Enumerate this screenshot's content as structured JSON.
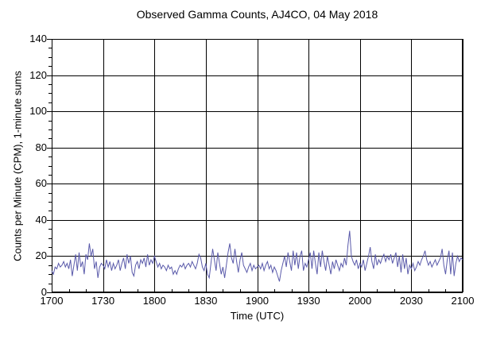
{
  "window": {
    "background": "#ffffff"
  },
  "chart_data": {
    "type": "line",
    "title": "Observed Gamma Counts, AJ4CO, 04 May 2018",
    "xlabel": "Time (UTC)",
    "ylabel": "Counts per Minute (CPM), 1-minute sums",
    "x_tick_labels": [
      "1700",
      "1730",
      "1800",
      "1830",
      "1900",
      "1930",
      "2000",
      "2030",
      "2100"
    ],
    "x_major_ticks_minutes": [
      0,
      30,
      60,
      90,
      120,
      150,
      180,
      210,
      240
    ],
    "x_minor_step_minutes": 10,
    "x_range_minutes": [
      0,
      240
    ],
    "ylim": [
      0,
      140
    ],
    "y_major_ticks": [
      0,
      20,
      40,
      60,
      80,
      100,
      120,
      140
    ],
    "y_minor_step": 5,
    "grid": true,
    "legend": "none",
    "axis_color": "#000000",
    "line_color": "#5a5aaa",
    "series": [
      {
        "name": "gamma_counts_cpm",
        "start_time_utc": "1700",
        "end_time_utc": "2100",
        "interval_minutes": 1,
        "values": [
          12,
          10,
          14,
          13,
          16,
          14,
          15,
          17,
          14,
          16,
          13,
          18,
          9,
          15,
          21,
          12,
          22,
          14,
          17,
          10,
          21,
          18,
          27,
          20,
          24,
          13,
          17,
          8,
          14,
          16,
          15,
          13,
          18,
          14,
          17,
          12,
          16,
          13,
          15,
          18,
          12,
          16,
          19,
          13,
          21,
          16,
          20,
          11,
          9,
          15,
          17,
          13,
          18,
          16,
          19,
          14,
          21,
          15,
          18,
          16,
          20,
          17,
          14,
          16,
          13,
          15,
          14,
          12,
          15,
          13,
          14,
          10,
          12,
          10,
          13,
          15,
          14,
          16,
          13,
          15,
          16,
          14,
          17,
          15,
          13,
          16,
          21,
          19,
          14,
          12,
          16,
          10,
          8,
          16,
          24,
          18,
          12,
          22,
          16,
          10,
          14,
          8,
          15,
          22,
          27,
          19,
          16,
          24,
          17,
          11,
          18,
          22,
          15,
          13,
          11,
          14,
          16,
          12,
          15,
          13,
          14,
          15,
          13,
          16,
          12,
          15,
          17,
          13,
          15,
          11,
          14,
          12,
          9,
          6,
          12,
          16,
          20,
          14,
          22,
          17,
          12,
          23,
          15,
          22,
          13,
          20,
          23,
          12,
          16,
          14,
          18,
          22,
          13,
          23,
          16,
          10,
          22,
          14,
          23,
          17,
          12,
          20,
          15,
          10,
          17,
          13,
          18,
          15,
          12,
          16,
          14,
          19,
          15,
          26,
          34,
          20,
          17,
          15,
          18,
          13,
          16,
          14,
          18,
          12,
          16,
          20,
          25,
          17,
          13,
          21,
          15,
          18,
          16,
          19,
          21,
          17,
          20,
          18,
          21,
          16,
          19,
          22,
          14,
          20,
          11,
          21,
          13,
          19,
          10,
          15,
          13,
          16,
          12,
          14,
          17,
          15,
          18,
          20,
          23,
          18,
          15,
          17,
          14,
          16,
          18,
          15,
          17,
          19,
          24,
          15,
          10,
          18,
          23,
          10,
          22,
          9,
          16,
          20,
          17,
          19,
          18
        ]
      }
    ]
  }
}
